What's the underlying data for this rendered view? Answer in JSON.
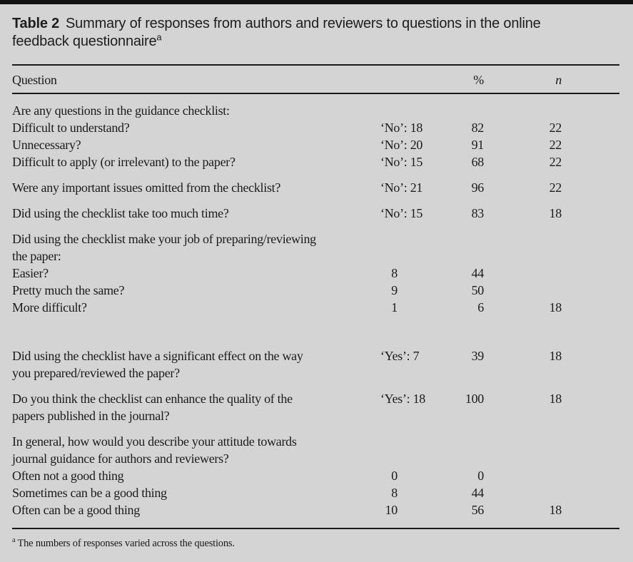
{
  "page": {
    "background_color": "#d4d4d4",
    "top_bar_color": "#121212",
    "rule_color": "#1a1a1a",
    "text_color": "#1b1b1b"
  },
  "title": {
    "label": "Table 2",
    "line1": "Summary of responses from authors and reviewers to questions in the online",
    "line2": "feedback questionnaire",
    "note_marker": "a"
  },
  "table": {
    "headers": {
      "question": "Question",
      "percent": "%",
      "n": "n"
    },
    "sections": [
      {
        "rows": [
          {
            "question": "Are any questions in the guidance checklist:"
          },
          {
            "question": "Difficult to understand?",
            "answer": "‘No’: 18",
            "percent": "82",
            "n": "22"
          },
          {
            "question": "Unnecessary?",
            "answer": "‘No’: 20",
            "percent": "91",
            "n": "22"
          },
          {
            "question": "Difficult to apply (or irrelevant) to the paper?",
            "answer": "‘No’: 15",
            "percent": "68",
            "n": "22"
          }
        ]
      },
      {
        "rows": [
          {
            "question": "Were any important issues omitted from the checklist?",
            "answer": "‘No’: 21",
            "percent": "96",
            "n": "22"
          }
        ]
      },
      {
        "rows": [
          {
            "question": "Did using the checklist take too much time?",
            "answer": "‘No’: 15",
            "percent": "83",
            "n": "18"
          }
        ]
      },
      {
        "rows": [
          {
            "question": "Did using the checklist make your job of preparing/reviewing"
          },
          {
            "question": "the paper:"
          },
          {
            "question": "Easier?",
            "answer": "8",
            "percent": "44"
          },
          {
            "question": "Pretty much the same?",
            "answer": "9",
            "percent": "50"
          },
          {
            "question": "More difficult?",
            "answer": "1",
            "percent": "6",
            "n": "18"
          }
        ]
      },
      {
        "extra_space_before": true,
        "rows": [
          {
            "question": "Did using the checklist have a significant effect on the way",
            "answer": "‘Yes’: 7",
            "percent": "39",
            "n": "18"
          },
          {
            "question": "you prepared/reviewed the paper?"
          }
        ]
      },
      {
        "rows": [
          {
            "question": "Do you think the checklist can enhance the quality of the",
            "answer": "‘Yes’: 18",
            "percent": "100",
            "n": "18"
          },
          {
            "question": "papers published in the journal?"
          }
        ]
      },
      {
        "rows": [
          {
            "question": "In general, how would you describe your attitude towards"
          },
          {
            "question": "journal guidance for authors and reviewers?"
          },
          {
            "question": "Often not a good thing",
            "answer": "0",
            "percent": "0"
          },
          {
            "question": "Sometimes can be a good thing",
            "answer": "8",
            "percent": "44"
          },
          {
            "question": "Often can be a good thing",
            "answer": "10",
            "percent": "56",
            "n": "18"
          }
        ]
      }
    ]
  },
  "footnote": {
    "marker": "a",
    "text": "The numbers of responses varied across the questions."
  }
}
